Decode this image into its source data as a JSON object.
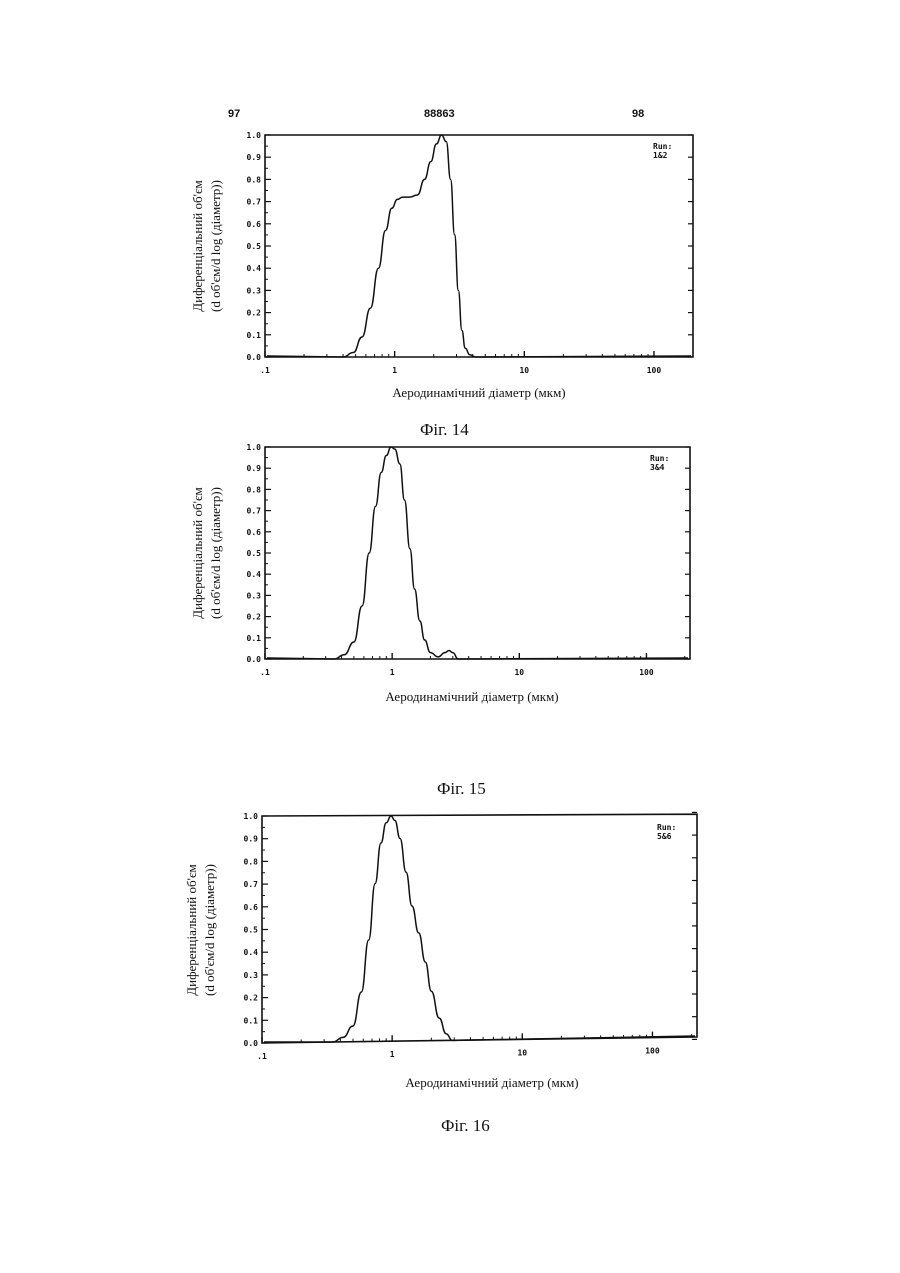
{
  "header": {
    "left": "97",
    "center": "88863",
    "right": "98"
  },
  "chart_data": [
    {
      "type": "line",
      "caption": "Фіг. 14",
      "run_label": "Run:",
      "run_value": "1&2",
      "xlabel": "Аеродинамічний діаметр (мкм)",
      "ylabel_lines": [
        "Диференціальний об'єм",
        "(d об'єм/d log (діаметр))"
      ],
      "x_scale": "log",
      "xlim": [
        0.1,
        200
      ],
      "ylim": [
        0,
        1.0
      ],
      "x_ticks": [
        0.1,
        1,
        10,
        100
      ],
      "x_tick_labels": [
        ".1",
        "1",
        "10",
        "100"
      ],
      "y_ticks": [
        0.0,
        0.1,
        0.2,
        0.3,
        0.4,
        0.5,
        0.6,
        0.7,
        0.8,
        0.9,
        1.0
      ],
      "y_tick_labels": [
        "0.0",
        "0.1",
        "0.2",
        "0.3",
        "0.4",
        "0.5",
        "0.6",
        "0.7",
        "0.8",
        "0.9",
        "1.0"
      ],
      "grid": false,
      "series": [
        {
          "x": [
            0.4,
            0.48,
            0.56,
            0.65,
            0.75,
            0.85,
            0.95,
            1.05,
            1.15,
            1.3,
            1.5,
            1.7,
            1.9,
            2.1,
            2.3,
            2.5,
            2.7,
            2.9,
            3.1,
            3.3,
            3.5,
            3.8,
            4.2,
            4.6
          ],
          "y": [
            0.0,
            0.02,
            0.09,
            0.22,
            0.4,
            0.57,
            0.67,
            0.71,
            0.72,
            0.72,
            0.73,
            0.8,
            0.88,
            0.96,
            1.0,
            0.97,
            0.8,
            0.55,
            0.3,
            0.12,
            0.04,
            0.01,
            0.0,
            0.0
          ]
        }
      ]
    },
    {
      "type": "line",
      "caption": "Фіг. 15",
      "run_label": "Run:",
      "run_value": "3&4",
      "xlabel": "Аеродинамічний діаметр (мкм)",
      "ylabel_lines": [
        "Диференціальний об'єм",
        "(d об'єм/d log (діаметр))"
      ],
      "x_scale": "log",
      "xlim": [
        0.1,
        220
      ],
      "ylim": [
        0,
        1.0
      ],
      "x_ticks": [
        0.1,
        1,
        10,
        100
      ],
      "x_tick_labels": [
        ".1",
        "1",
        "10",
        "100"
      ],
      "y_ticks": [
        0.0,
        0.1,
        0.2,
        0.3,
        0.4,
        0.5,
        0.6,
        0.7,
        0.8,
        0.9,
        1.0
      ],
      "y_tick_labels": [
        "0.0",
        "0.1",
        "0.2",
        "0.3",
        "0.4",
        "0.5",
        "0.6",
        "0.7",
        "0.8",
        "0.9",
        "1.0"
      ],
      "grid": false,
      "series": [
        {
          "x": [
            0.35,
            0.42,
            0.5,
            0.58,
            0.66,
            0.74,
            0.82,
            0.9,
            0.98,
            1.05,
            1.15,
            1.25,
            1.38,
            1.5,
            1.65,
            1.8,
            2.0,
            2.3,
            2.6,
            2.8,
            3.0,
            3.3,
            3.6
          ],
          "y": [
            0.0,
            0.02,
            0.08,
            0.25,
            0.5,
            0.72,
            0.88,
            0.96,
            1.0,
            0.99,
            0.92,
            0.75,
            0.52,
            0.33,
            0.18,
            0.09,
            0.03,
            0.01,
            0.03,
            0.04,
            0.03,
            0.0,
            0.0
          ]
        }
      ]
    },
    {
      "type": "line",
      "caption": "Фіг. 16",
      "run_label": "Run:",
      "run_value": "5&6",
      "xlabel": "Аеродинамічний діаметр (мкм)",
      "ylabel_lines": [
        "Диференціальний об'єм",
        "(d об'єм/d log (діаметр))"
      ],
      "x_scale": "log",
      "xlim": [
        0.1,
        220
      ],
      "ylim": [
        0,
        1.0
      ],
      "x_ticks": [
        0.1,
        1,
        10,
        100
      ],
      "x_tick_labels": [
        ".1",
        "1",
        "10",
        "100"
      ],
      "y_ticks": [
        0.0,
        0.1,
        0.2,
        0.3,
        0.4,
        0.5,
        0.6,
        0.7,
        0.8,
        0.9,
        1.0
      ],
      "y_tick_labels": [
        "0.0",
        "0.1",
        "0.2",
        "0.3",
        "0.4",
        "0.5",
        "0.6",
        "0.7",
        "0.8",
        "0.9",
        "1.0"
      ],
      "grid": false,
      "series": [
        {
          "x": [
            0.35,
            0.42,
            0.5,
            0.58,
            0.66,
            0.74,
            0.82,
            0.9,
            0.98,
            1.05,
            1.15,
            1.28,
            1.42,
            1.6,
            1.8,
            2.0,
            2.3,
            2.6,
            2.9,
            3.2
          ],
          "y": [
            0.0,
            0.02,
            0.07,
            0.22,
            0.45,
            0.7,
            0.88,
            0.97,
            1.0,
            0.98,
            0.9,
            0.75,
            0.6,
            0.48,
            0.35,
            0.22,
            0.1,
            0.03,
            0.0,
            0.0
          ]
        }
      ]
    }
  ]
}
